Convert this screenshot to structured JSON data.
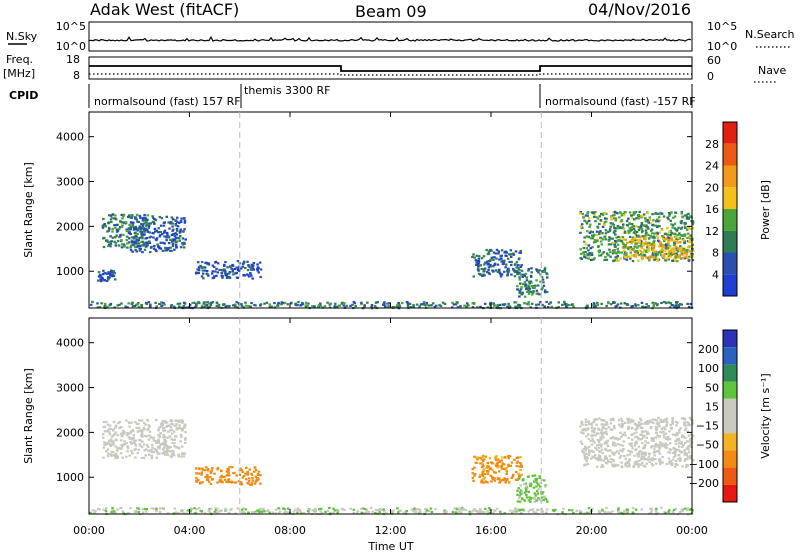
{
  "header": {
    "station": "Adak West (fitACF)",
    "beam": "Beam 09",
    "date": "04/Nov/2016"
  },
  "top_panels": {
    "nsky": {
      "label": "N.Sky",
      "ticks": [
        "10^5",
        "10^0"
      ]
    },
    "nsearch": {
      "label": "N.Search",
      "ticks": [
        "10^5",
        "10^0"
      ]
    },
    "freq": {
      "label_line1": "Freq.",
      "label_line2": "[MHz]",
      "ticks": [
        "18",
        "8"
      ]
    },
    "nave": {
      "label": "Nave",
      "ticks": [
        "60",
        "0"
      ]
    },
    "cpid": {
      "label": "CPID",
      "segments": [
        "normalsound (fast) 157 RF",
        "themis 3300 RF",
        "normalsound (fast) -157 RF"
      ]
    }
  },
  "colors": {
    "power_scale": [
      "#1f3fd0",
      "#2a4fb0",
      "#2e7d55",
      "#4aa63a",
      "#f2c21a",
      "#f39a1a",
      "#ec5a12",
      "#e02010"
    ],
    "velocity_scale": [
      "#e41a12",
      "#ee5a14",
      "#f28a14",
      "#f4b324",
      "#c9c9c0",
      "#c9c9c0",
      "#5fc43c",
      "#2e8b57",
      "#2a62c0",
      "#2a34b4"
    ],
    "dashed_line": "#bbbbbb",
    "nsky_line": "#000000"
  },
  "chart_data": [
    {
      "type": "heatmap",
      "name": "power",
      "ylabel": "Slant Range [km]",
      "xlabel": "",
      "xlim": [
        0,
        24
      ],
      "ylim": [
        180,
        4550
      ],
      "yticks": [
        1000,
        2000,
        3000,
        4000
      ],
      "colorbar": {
        "label": "Power [dB]",
        "range": [
          0,
          32
        ],
        "ticks": [
          4,
          8,
          12,
          16,
          20,
          24,
          28
        ]
      },
      "regions": [
        {
          "t": [
            0.5,
            2.3
          ],
          "r": [
            1550,
            2300
          ],
          "level": 10
        },
        {
          "t": [
            1.6,
            3.8
          ],
          "r": [
            1450,
            2250
          ],
          "level": 6
        },
        {
          "t": [
            0.3,
            1.0
          ],
          "r": [
            800,
            1050
          ],
          "level": 5
        },
        {
          "t": [
            4.2,
            6.8
          ],
          "r": [
            850,
            1250
          ],
          "level": 5
        },
        {
          "t": [
            15.2,
            17.2
          ],
          "r": [
            900,
            1500
          ],
          "level": 7
        },
        {
          "t": [
            17.0,
            18.2
          ],
          "r": [
            450,
            1100
          ],
          "level": 10
        },
        {
          "t": [
            19.5,
            24.0
          ],
          "r": [
            1250,
            2350
          ],
          "level": 12
        },
        {
          "t": [
            21.2,
            24.0
          ],
          "r": [
            1300,
            1800
          ],
          "level": 19
        },
        {
          "t": [
            0.0,
            24.0
          ],
          "r": [
            200,
            340
          ],
          "level": 9
        }
      ]
    },
    {
      "type": "heatmap",
      "name": "velocity",
      "ylabel": "Slant Range [km]",
      "xlabel": "Time UT",
      "xlim": [
        0,
        24
      ],
      "ylim": [
        180,
        4550
      ],
      "yticks": [
        1000,
        2000,
        3000,
        4000
      ],
      "xticks": [
        "00:00",
        "04:00",
        "08:00",
        "12:00",
        "16:00",
        "20:00",
        "00:00"
      ],
      "colorbar": {
        "label": "Velocity [m s⁻¹]",
        "ticks": [
          -200,
          -100,
          -50,
          -15,
          15,
          50,
          100,
          200
        ]
      },
      "regions": [
        {
          "t": [
            0.5,
            3.8
          ],
          "r": [
            1450,
            2300
          ],
          "velocity": 0
        },
        {
          "t": [
            4.2,
            6.8
          ],
          "r": [
            850,
            1250
          ],
          "velocity": -60
        },
        {
          "t": [
            15.2,
            17.2
          ],
          "r": [
            900,
            1500
          ],
          "velocity": -40
        },
        {
          "t": [
            17.0,
            18.2
          ],
          "r": [
            450,
            1100
          ],
          "velocity": 20
        },
        {
          "t": [
            19.5,
            24.0
          ],
          "r": [
            1250,
            2350
          ],
          "velocity": 0
        },
        {
          "t": [
            0.0,
            24.0
          ],
          "r": [
            200,
            340
          ],
          "velocity": 10
        }
      ]
    }
  ]
}
